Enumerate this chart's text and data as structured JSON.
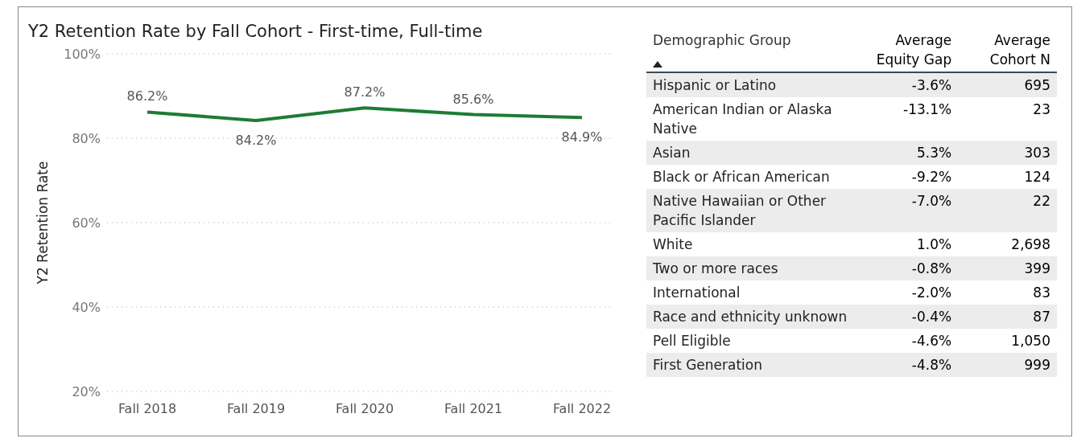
{
  "chart_data": [
    {
      "type": "line",
      "title": "Y2 Retention Rate by Fall Cohort - First-time, Full-time",
      "ylabel": "Y2 Retention Rate",
      "categories": [
        "Fall 2018",
        "Fall 2019",
        "Fall 2020",
        "Fall 2021",
        "Fall 2022"
      ],
      "series": [
        {
          "color": "#1e7b34",
          "values": [
            86.2,
            84.2,
            87.2,
            85.6,
            84.9
          ],
          "value_labels": [
            "86.2%",
            "84.2%",
            "87.2%",
            "85.6%",
            "84.9%"
          ]
        }
      ],
      "ylim": [
        20,
        100
      ],
      "yticks": [
        {
          "value": 20,
          "label": "20%"
        },
        {
          "value": 40,
          "label": "40%"
        },
        {
          "value": 60,
          "label": "60%"
        },
        {
          "value": 80,
          "label": "80%"
        },
        {
          "value": 100,
          "label": "100%"
        }
      ],
      "grid": "y",
      "line_style": "solid"
    },
    {
      "type": "other",
      "xlabel": "Demographic Group",
      "categories": [
        "Hispanic or Latino",
        "American Indian or Alaska Native",
        "Asian",
        "Black or African American",
        "Native Hawaiian or Other Pacific Islander",
        "White",
        "Two or more races",
        "International",
        "Race and ethnicity unknown",
        "Pell Eligible",
        "First Generation"
      ],
      "series": [
        {
          "name": "Average Equity Gap",
          "values": [
            -3.6,
            -13.1,
            5.3,
            -9.2,
            -7.0,
            1.0,
            -0.8,
            -2.0,
            -0.4,
            -4.6,
            -4.8
          ],
          "value_labels": [
            "-3.6%",
            "-13.1%",
            "5.3%",
            "-9.2%",
            "-7.0%",
            "1.0%",
            "-0.8%",
            "-2.0%",
            "-0.4%",
            "-4.6%",
            "-4.8%"
          ]
        },
        {
          "name": "Average Cohort N",
          "values": [
            695,
            23,
            303,
            124,
            22,
            2698,
            399,
            83,
            87,
            1050,
            999
          ],
          "value_labels": [
            "695",
            "23",
            "303",
            "124",
            "22",
            "2,698",
            "399",
            "83",
            "87",
            "1,050",
            "999"
          ]
        }
      ]
    }
  ]
}
